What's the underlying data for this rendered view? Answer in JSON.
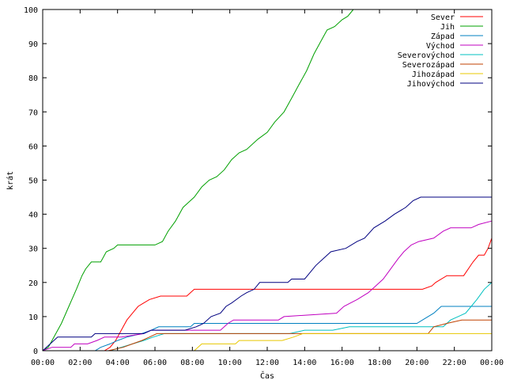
{
  "chart_data": {
    "type": "line",
    "xlabel": "Čas",
    "ylabel": "krát",
    "xlim": [
      0,
      24
    ],
    "ylim": [
      0,
      100
    ],
    "x_ticks": [
      {
        "v": 0,
        "label": "00:00"
      },
      {
        "v": 2,
        "label": "02:00"
      },
      {
        "v": 4,
        "label": "04:00"
      },
      {
        "v": 6,
        "label": "06:00"
      },
      {
        "v": 8,
        "label": "08:00"
      },
      {
        "v": 10,
        "label": "10:00"
      },
      {
        "v": 12,
        "label": "12:00"
      },
      {
        "v": 14,
        "label": "14:00"
      },
      {
        "v": 16,
        "label": "16:00"
      },
      {
        "v": 18,
        "label": "18:00"
      },
      {
        "v": 20,
        "label": "20:00"
      },
      {
        "v": 22,
        "label": "22:00"
      },
      {
        "v": 24,
        "label": "00:00"
      }
    ],
    "y_ticks": [
      {
        "v": 0,
        "label": "0"
      },
      {
        "v": 10,
        "label": "10"
      },
      {
        "v": 20,
        "label": "20"
      },
      {
        "v": 30,
        "label": "30"
      },
      {
        "v": 40,
        "label": "40"
      },
      {
        "v": 50,
        "label": "50"
      },
      {
        "v": 60,
        "label": "60"
      },
      {
        "v": 70,
        "label": "70"
      },
      {
        "v": 80,
        "label": "80"
      },
      {
        "v": 90,
        "label": "90"
      },
      {
        "v": 100,
        "label": "100"
      }
    ],
    "legend_position": "top-right",
    "grid": false,
    "series": [
      {
        "name": "Sever",
        "color": "#ff0000",
        "points": [
          [
            0,
            0
          ],
          [
            3.3,
            0
          ],
          [
            3.6,
            1
          ],
          [
            3.9,
            3
          ],
          [
            4.2,
            6
          ],
          [
            4.5,
            9
          ],
          [
            4.8,
            11
          ],
          [
            5.1,
            13
          ],
          [
            5.4,
            14
          ],
          [
            5.7,
            15
          ],
          [
            6.3,
            16
          ],
          [
            7.7,
            16
          ],
          [
            8.1,
            18
          ],
          [
            20.3,
            18
          ],
          [
            20.8,
            19
          ],
          [
            21,
            20
          ],
          [
            21.6,
            22
          ],
          [
            22.5,
            22
          ],
          [
            23,
            26
          ],
          [
            23.3,
            28
          ],
          [
            23.6,
            28
          ],
          [
            23.8,
            30
          ],
          [
            24,
            33
          ]
        ]
      },
      {
        "name": "Jih",
        "color": "#00a000",
        "points": [
          [
            0,
            0
          ],
          [
            0.3,
            1
          ],
          [
            0.6,
            4
          ],
          [
            1,
            8
          ],
          [
            1.4,
            13
          ],
          [
            1.8,
            18
          ],
          [
            2.1,
            22
          ],
          [
            2.3,
            24
          ],
          [
            2.6,
            26
          ],
          [
            3.1,
            26
          ],
          [
            3.4,
            29
          ],
          [
            3.8,
            30
          ],
          [
            4,
            31
          ],
          [
            6,
            31
          ],
          [
            6.4,
            32
          ],
          [
            6.7,
            35
          ],
          [
            7.1,
            38
          ],
          [
            7.5,
            42
          ],
          [
            8.1,
            45
          ],
          [
            8.5,
            48
          ],
          [
            8.9,
            50
          ],
          [
            9.3,
            51
          ],
          [
            9.7,
            53
          ],
          [
            10.1,
            56
          ],
          [
            10.5,
            58
          ],
          [
            10.9,
            59
          ],
          [
            11.5,
            62
          ],
          [
            12,
            64
          ],
          [
            12.4,
            67
          ],
          [
            12.9,
            70
          ],
          [
            13.3,
            74
          ],
          [
            13.7,
            78
          ],
          [
            14.1,
            82
          ],
          [
            14.5,
            87
          ],
          [
            14.9,
            91
          ],
          [
            15.2,
            94
          ],
          [
            15.6,
            95
          ],
          [
            16,
            97
          ],
          [
            16.3,
            98
          ],
          [
            16.6,
            100
          ]
        ]
      },
      {
        "name": "Západ",
        "color": "#0080c0",
        "points": [
          [
            0,
            0
          ],
          [
            2.8,
            0
          ],
          [
            3.1,
            1
          ],
          [
            3.6,
            2
          ],
          [
            4,
            3
          ],
          [
            4.5,
            4
          ],
          [
            5.3,
            5
          ],
          [
            5.8,
            6
          ],
          [
            6.2,
            7
          ],
          [
            7.9,
            7
          ],
          [
            8.1,
            8
          ],
          [
            20,
            8
          ],
          [
            20.3,
            9
          ],
          [
            20.9,
            11
          ],
          [
            21.3,
            13
          ],
          [
            24,
            13
          ]
        ]
      },
      {
        "name": "Východ",
        "color": "#c000c0",
        "points": [
          [
            0,
            0
          ],
          [
            0.5,
            1
          ],
          [
            1.5,
            1
          ],
          [
            1.7,
            2
          ],
          [
            2.4,
            2
          ],
          [
            2.9,
            3
          ],
          [
            3.3,
            4
          ],
          [
            4.2,
            4
          ],
          [
            5.4,
            5
          ],
          [
            5.8,
            6
          ],
          [
            9.5,
            6
          ],
          [
            9.9,
            8
          ],
          [
            10.2,
            9
          ],
          [
            12.6,
            9
          ],
          [
            12.9,
            10
          ],
          [
            15.7,
            11
          ],
          [
            16.1,
            13
          ],
          [
            16.8,
            15
          ],
          [
            17.4,
            17
          ],
          [
            17.8,
            19
          ],
          [
            18.2,
            21
          ],
          [
            18.6,
            24
          ],
          [
            19,
            27
          ],
          [
            19.3,
            29
          ],
          [
            19.7,
            31
          ],
          [
            20.1,
            32
          ],
          [
            20.9,
            33
          ],
          [
            21.4,
            35
          ],
          [
            21.8,
            36
          ],
          [
            22.9,
            36
          ],
          [
            23.3,
            37
          ],
          [
            24,
            38
          ]
        ]
      },
      {
        "name": "Severovýchod",
        "color": "#00c0c0",
        "points": [
          [
            0,
            0
          ],
          [
            3.6,
            0
          ],
          [
            4.2,
            1
          ],
          [
            4.8,
            2
          ],
          [
            5.4,
            3
          ],
          [
            5.9,
            4
          ],
          [
            6.5,
            5
          ],
          [
            13.2,
            5
          ],
          [
            14,
            6
          ],
          [
            15.5,
            6
          ],
          [
            16.4,
            7
          ],
          [
            21.4,
            7
          ],
          [
            21.8,
            9
          ],
          [
            22.2,
            10
          ],
          [
            22.6,
            11
          ],
          [
            22.9,
            13
          ],
          [
            23.2,
            15
          ],
          [
            23.6,
            18
          ],
          [
            24,
            20
          ]
        ]
      },
      {
        "name": "Severozápad",
        "color": "#c04000",
        "points": [
          [
            0,
            0
          ],
          [
            3.5,
            0
          ],
          [
            4.3,
            1
          ],
          [
            4.8,
            2
          ],
          [
            5.3,
            3
          ],
          [
            5.7,
            4
          ],
          [
            6.1,
            5
          ],
          [
            20.6,
            5
          ],
          [
            20.9,
            7
          ],
          [
            21.6,
            8
          ],
          [
            22.4,
            9
          ],
          [
            24,
            9
          ]
        ]
      },
      {
        "name": "Jihozápad",
        "color": "#e8c800",
        "points": [
          [
            0,
            0
          ],
          [
            8.1,
            0
          ],
          [
            8.5,
            2
          ],
          [
            10.3,
            2
          ],
          [
            10.5,
            3
          ],
          [
            12.8,
            3
          ],
          [
            13.4,
            4
          ],
          [
            13.9,
            5
          ],
          [
            24,
            5
          ]
        ]
      },
      {
        "name": "Jihovýchod",
        "color": "#000080",
        "points": [
          [
            0,
            0
          ],
          [
            0.4,
            2
          ],
          [
            0.8,
            4
          ],
          [
            2.6,
            4
          ],
          [
            2.8,
            5
          ],
          [
            5.4,
            5
          ],
          [
            5.8,
            6
          ],
          [
            7.6,
            6
          ],
          [
            8.2,
            7
          ],
          [
            8.6,
            8
          ],
          [
            9,
            10
          ],
          [
            9.5,
            11
          ],
          [
            9.8,
            13
          ],
          [
            10.1,
            14
          ],
          [
            10.6,
            16
          ],
          [
            10.9,
            17
          ],
          [
            11.3,
            18
          ],
          [
            11.6,
            20
          ],
          [
            13.1,
            20
          ],
          [
            13.3,
            21
          ],
          [
            14,
            21
          ],
          [
            14.3,
            23
          ],
          [
            14.6,
            25
          ],
          [
            15,
            27
          ],
          [
            15.4,
            29
          ],
          [
            16.2,
            30
          ],
          [
            16.8,
            32
          ],
          [
            17.2,
            33
          ],
          [
            17.7,
            36
          ],
          [
            18.3,
            38
          ],
          [
            18.8,
            40
          ],
          [
            19.4,
            42
          ],
          [
            19.8,
            44
          ],
          [
            20.2,
            45
          ],
          [
            24,
            45
          ]
        ]
      }
    ]
  }
}
